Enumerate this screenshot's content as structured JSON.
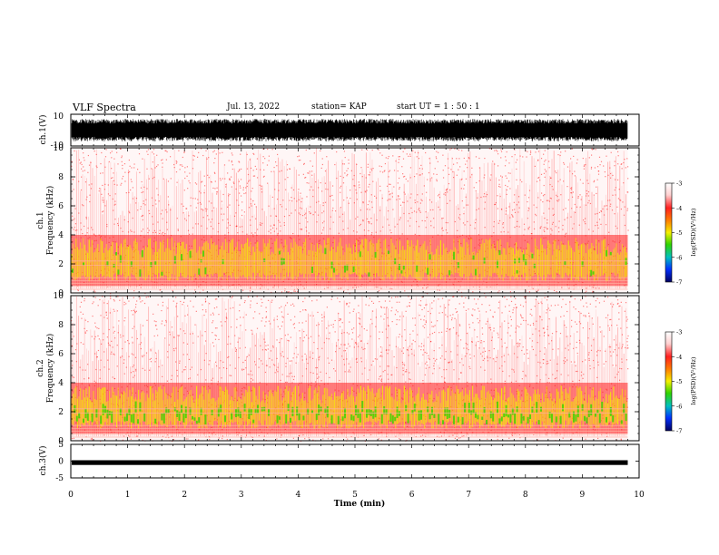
{
  "header": {
    "title": "VLF Spectra",
    "date": "Jul. 13, 2022",
    "station": "station= KAP",
    "start": "start UT =  1 : 50 : 1"
  },
  "chart_data": [
    {
      "type": "line",
      "id": "ch1-waveform",
      "ylabel": "ch.1(V)",
      "ylim": [
        -10,
        10
      ],
      "yticks": [
        "10",
        "-10"
      ],
      "x_range_min": [
        0,
        9.8
      ],
      "description_series": [
        {
          "values_envelope_min": -7,
          "values_envelope_max": 7
        }
      ]
    },
    {
      "type": "heatmap",
      "id": "ch1-spectrogram",
      "ylabel_top": "ch.1",
      "ylabel": "Frequency (kHz)",
      "ylim": [
        0,
        10
      ],
      "yticks": [
        "0",
        "2",
        "4",
        "6",
        "8",
        "10"
      ],
      "x_range_min": [
        0,
        9.8
      ],
      "colorbar": {
        "label": "log(PSD)(V²/Hz)",
        "range": [
          -7,
          -3
        ],
        "ticks": [
          "-3",
          "-4",
          "-5",
          "-6",
          "-7"
        ]
      }
    },
    {
      "type": "heatmap",
      "id": "ch2-spectrogram",
      "ylabel_top": "ch.2",
      "ylabel": "Frequency (kHz)",
      "ylim": [
        0,
        10
      ],
      "yticks": [
        "0",
        "2",
        "4",
        "6",
        "8",
        "10"
      ],
      "x_range_min": [
        0,
        9.8
      ],
      "colorbar": {
        "label": "log(PSD)(V²/Hz)",
        "range": [
          -7,
          -3
        ],
        "ticks": [
          "-3",
          "-4",
          "-5",
          "-6",
          "-7"
        ]
      }
    },
    {
      "type": "line",
      "id": "ch3-waveform",
      "ylabel": "ch.3(V)",
      "ylim": [
        -5,
        5
      ],
      "yticks": [
        "5",
        "0",
        "-5"
      ],
      "x_range_min": [
        0,
        9.8
      ],
      "series": [
        {
          "values_envelope_min": -1,
          "values_envelope_max": 0
        }
      ]
    }
  ],
  "xaxis": {
    "label": "Time (min)",
    "range": [
      0,
      10
    ],
    "ticks": [
      "0",
      "1",
      "2",
      "3",
      "4",
      "5",
      "6",
      "7",
      "8",
      "9",
      "10"
    ]
  },
  "colors": {
    "ink": "#000000",
    "spec_background": "#ffffff",
    "spec_red": "#ff1e1e",
    "spec_yellow": "#f5f000",
    "spec_green": "#36d400"
  }
}
